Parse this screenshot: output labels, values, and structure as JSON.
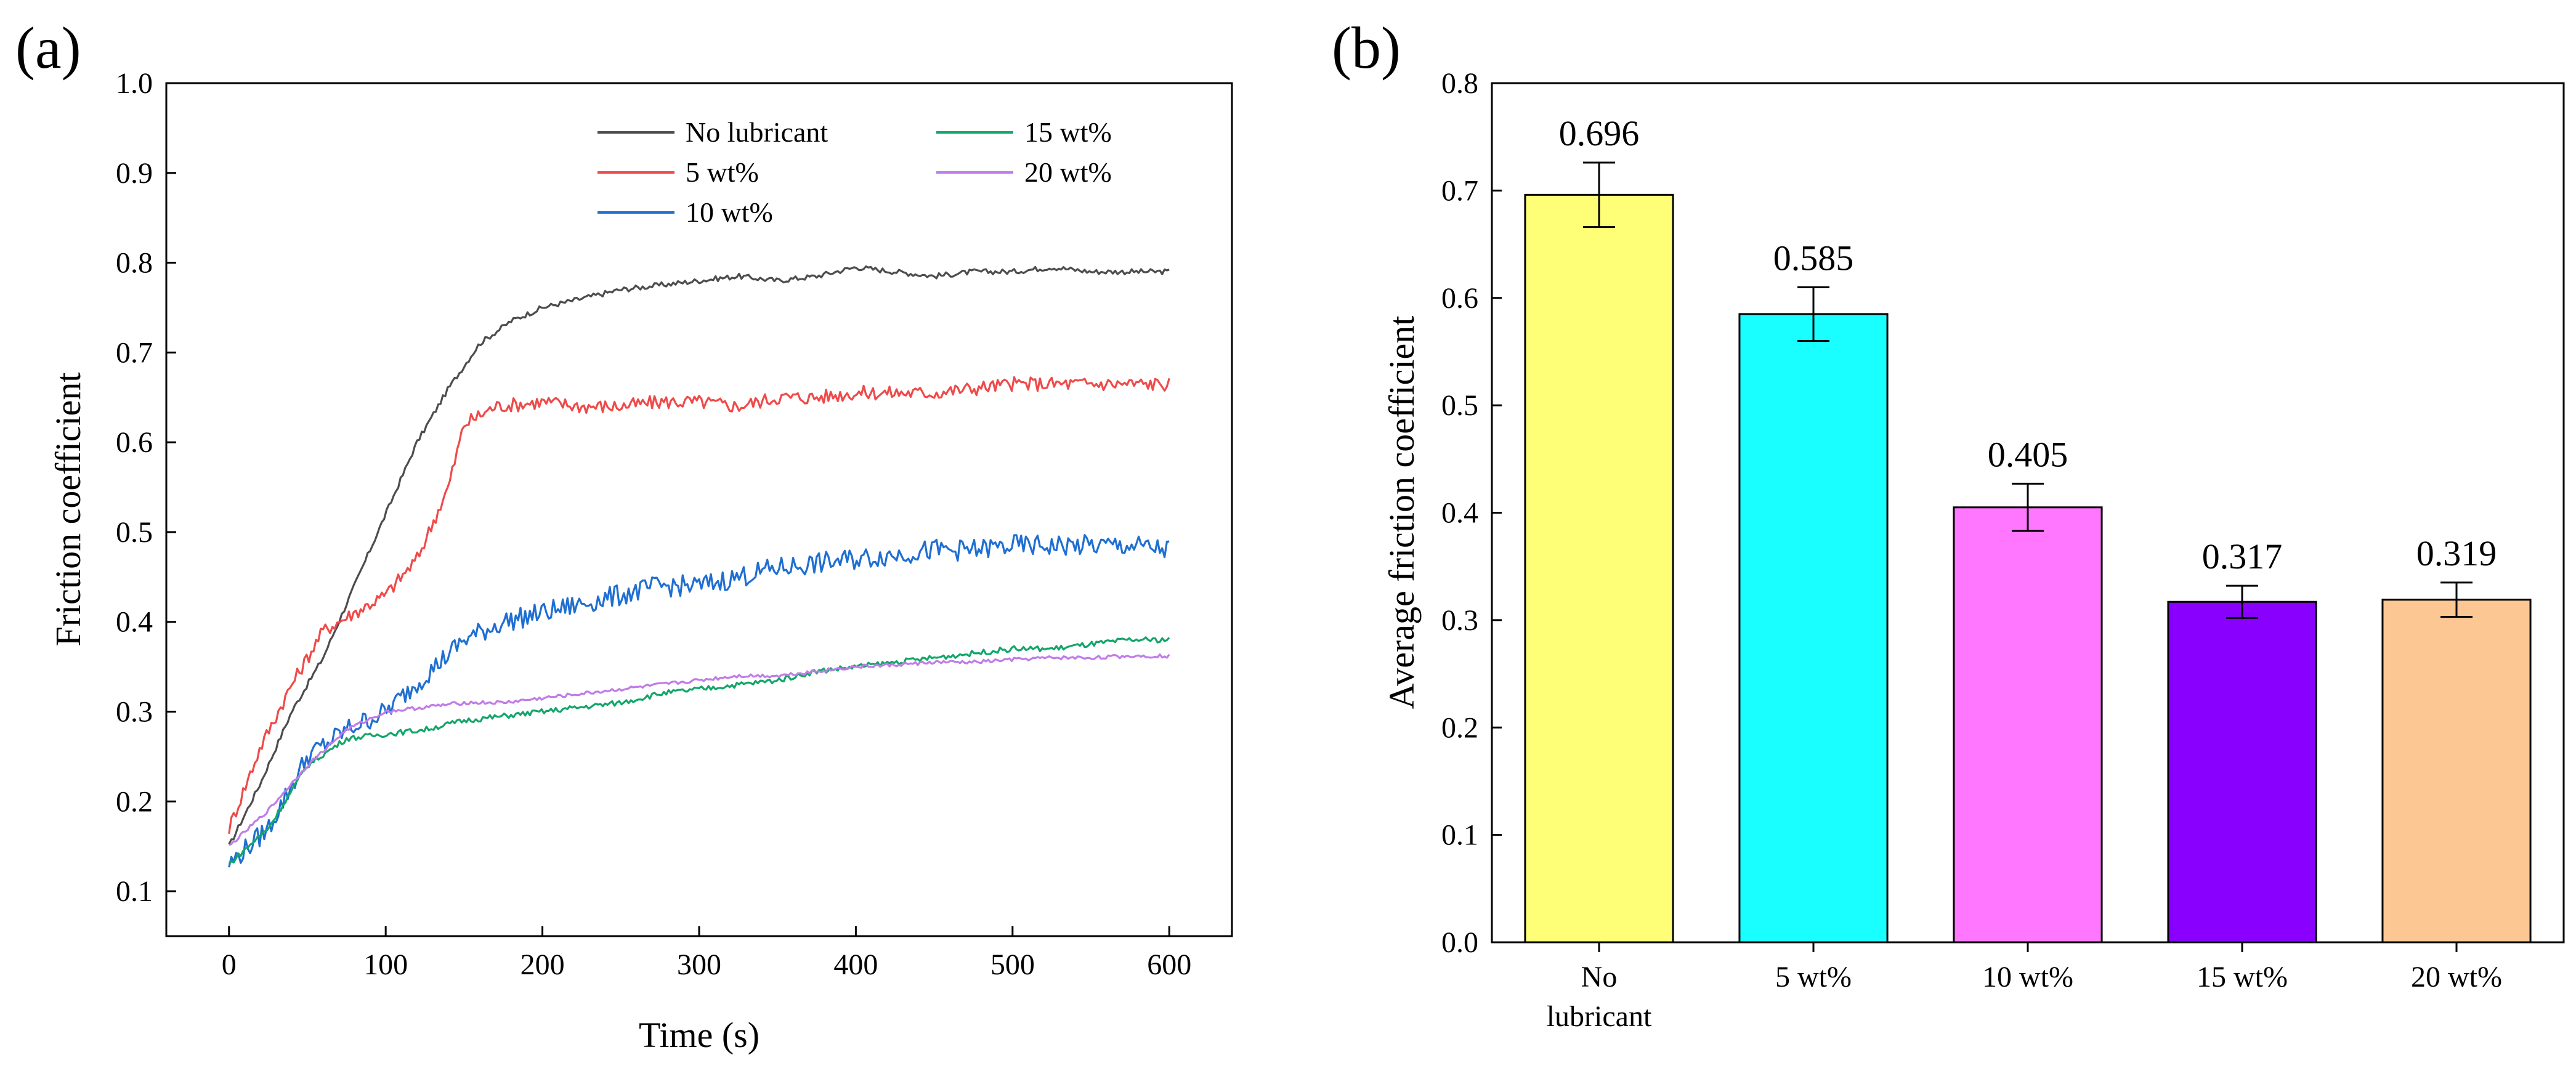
{
  "chart_data": [
    {
      "type": "line",
      "panel_label": "(a)",
      "xlabel": "Time (s)",
      "ylabel": "Friction coefficient",
      "xlim": [
        -40,
        640
      ],
      "ylim": [
        0.05,
        1.0
      ],
      "xticks": [
        0,
        100,
        200,
        300,
        400,
        500,
        600
      ],
      "yticks": [
        0.1,
        0.2,
        0.3,
        0.4,
        0.5,
        0.6,
        0.7,
        0.8,
        0.9,
        1.0
      ],
      "xtick_labels": [
        "0",
        "100",
        "200",
        "300",
        "400",
        "500",
        "600"
      ],
      "ytick_labels": [
        "0.1",
        "0.2",
        "0.3",
        "0.4",
        "0.5",
        "0.6",
        "0.7",
        "0.8",
        "0.9",
        "1.0"
      ],
      "legend_position": "top-right",
      "series": [
        {
          "name": "No lubricant",
          "color": "#4d4d4d",
          "noise": 0.003,
          "x": [
            0,
            20,
            40,
            60,
            80,
            100,
            120,
            140,
            160,
            180,
            200,
            225,
            250,
            275,
            300,
            325,
            350,
            375,
            400,
            425,
            450,
            475,
            500,
            525,
            550,
            575,
            600
          ],
          "y": [
            0.15,
            0.22,
            0.3,
            0.36,
            0.44,
            0.52,
            0.6,
            0.66,
            0.71,
            0.735,
            0.75,
            0.76,
            0.77,
            0.775,
            0.78,
            0.785,
            0.78,
            0.785,
            0.795,
            0.79,
            0.785,
            0.79,
            0.79,
            0.795,
            0.79,
            0.79,
            0.79
          ]
        },
        {
          "name": "5 wt%",
          "color": "#ef4a4a",
          "noise": 0.008,
          "x": [
            0,
            20,
            40,
            60,
            80,
            100,
            120,
            140,
            150,
            170,
            200,
            225,
            250,
            275,
            300,
            325,
            350,
            375,
            400,
            425,
            450,
            475,
            500,
            525,
            550,
            575,
            600
          ],
          "y": [
            0.17,
            0.26,
            0.33,
            0.39,
            0.41,
            0.43,
            0.47,
            0.55,
            0.62,
            0.64,
            0.645,
            0.64,
            0.64,
            0.645,
            0.645,
            0.64,
            0.65,
            0.65,
            0.655,
            0.655,
            0.655,
            0.66,
            0.665,
            0.665,
            0.665,
            0.665,
            0.665
          ]
        },
        {
          "name": "10 wt%",
          "color": "#1f6fd1",
          "noise": 0.012,
          "x": [
            0,
            25,
            50,
            75,
            100,
            125,
            150,
            175,
            200,
            225,
            250,
            275,
            300,
            325,
            350,
            375,
            400,
            425,
            450,
            475,
            500,
            525,
            550,
            575,
            600
          ],
          "y": [
            0.13,
            0.17,
            0.25,
            0.28,
            0.3,
            0.34,
            0.38,
            0.4,
            0.41,
            0.42,
            0.43,
            0.44,
            0.44,
            0.45,
            0.46,
            0.465,
            0.47,
            0.475,
            0.48,
            0.48,
            0.485,
            0.485,
            0.485,
            0.485,
            0.48
          ]
        },
        {
          "name": "15 wt%",
          "color": "#13a66a",
          "noise": 0.003,
          "x": [
            0,
            25,
            50,
            75,
            100,
            125,
            150,
            175,
            200,
            225,
            250,
            275,
            300,
            325,
            350,
            375,
            400,
            425,
            450,
            475,
            500,
            525,
            550,
            575,
            600
          ],
          "y": [
            0.13,
            0.17,
            0.24,
            0.27,
            0.275,
            0.28,
            0.29,
            0.295,
            0.3,
            0.305,
            0.31,
            0.32,
            0.325,
            0.33,
            0.335,
            0.345,
            0.35,
            0.355,
            0.36,
            0.365,
            0.37,
            0.37,
            0.375,
            0.38,
            0.38
          ]
        },
        {
          "name": "20 wt%",
          "color": "#c07ce8",
          "noise": 0.002,
          "x": [
            0,
            25,
            50,
            75,
            100,
            125,
            150,
            175,
            200,
            225,
            250,
            275,
            300,
            325,
            350,
            375,
            400,
            425,
            450,
            475,
            500,
            525,
            550,
            575,
            600
          ],
          "y": [
            0.15,
            0.19,
            0.24,
            0.28,
            0.3,
            0.305,
            0.31,
            0.31,
            0.315,
            0.32,
            0.325,
            0.33,
            0.335,
            0.34,
            0.34,
            0.345,
            0.35,
            0.352,
            0.355,
            0.355,
            0.358,
            0.36,
            0.36,
            0.362,
            0.362
          ]
        }
      ]
    },
    {
      "type": "bar",
      "panel_label": "(b)",
      "ylabel": "Average friction coefficient",
      "ylim": [
        0.0,
        0.8
      ],
      "yticks": [
        0.0,
        0.1,
        0.2,
        0.3,
        0.4,
        0.5,
        0.6,
        0.7,
        0.8
      ],
      "ytick_labels": [
        "0.0",
        "0.1",
        "0.2",
        "0.3",
        "0.4",
        "0.5",
        "0.6",
        "0.7",
        "0.8"
      ],
      "categories": [
        "No lubricant",
        "5 wt%",
        "10 wt%",
        "15 wt%",
        "20 wt%"
      ],
      "category_lines": [
        [
          "No",
          "lubricant"
        ],
        [
          "5 wt%"
        ],
        [
          "10 wt%"
        ],
        [
          "15 wt%"
        ],
        [
          "20 wt%"
        ]
      ],
      "values": [
        0.696,
        0.585,
        0.405,
        0.317,
        0.319
      ],
      "value_labels": [
        "0.696",
        "0.585",
        "0.405",
        "0.317",
        "0.319"
      ],
      "errors": [
        0.03,
        0.025,
        0.022,
        0.015,
        0.016
      ],
      "colors": [
        "#ffff77",
        "#19ffff",
        "#ff77ff",
        "#8a00ff",
        "#fcc793"
      ]
    }
  ]
}
